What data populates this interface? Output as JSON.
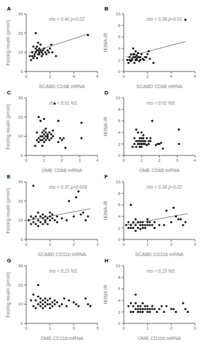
{
  "chart_data": [
    {
      "type": "scatter",
      "title": "A",
      "annotations": [
        {
          "text": "rho = 0.40 p=0.02",
          "color": "#808080"
        }
      ],
      "xlabel": "SCABD CD68 mRNA",
      "ylabel": "Fasting Insulin (pmol/l)",
      "xlim": [
        0,
        6
      ],
      "ylim": [
        0,
        30
      ],
      "xticks": [
        0,
        2,
        4,
        6
      ],
      "yticks": [
        0,
        10,
        20,
        30
      ],
      "grid": false,
      "series": [
        {
          "type": "scatter",
          "color": "#1a1a1a",
          "x": [
            0.3,
            0.4,
            0.5,
            0.5,
            0.6,
            0.6,
            0.7,
            0.7,
            0.8,
            0.8,
            0.8,
            0.9,
            0.9,
            0.9,
            1.0,
            1.0,
            1.0,
            1.1,
            1.1,
            1.1,
            1.2,
            1.2,
            1.3,
            1.3,
            1.4,
            1.4,
            1.5,
            1.6,
            1.7,
            1.8,
            1.9,
            2.0,
            2.1,
            2.2,
            2.5,
            5.2
          ],
          "values": [
            8,
            6,
            8,
            10,
            7,
            13,
            8,
            9,
            20,
            10,
            12,
            7,
            11,
            13,
            9,
            11,
            15,
            9,
            10,
            12,
            11,
            14,
            8,
            10,
            9,
            11,
            12,
            10,
            9,
            11,
            10,
            12,
            14,
            10,
            8,
            19
          ]
        },
        {
          "type": "line",
          "color": "#808080",
          "x": [
            0.2,
            5.2
          ],
          "values": [
            9.5,
            19.5
          ]
        }
      ]
    },
    {
      "type": "scatter",
      "title": "B",
      "annotations": [
        {
          "text": "rho = 0.39 p=0.01",
          "color": "#808080"
        }
      ],
      "xlabel": "SCABD CD68 mRNA",
      "ylabel": "HOMA-IR",
      "xlim": [
        0,
        6
      ],
      "ylim": [
        0,
        10
      ],
      "xticks": [
        0,
        2,
        4,
        6
      ],
      "yticks": [
        0,
        2,
        4,
        6,
        8,
        10
      ],
      "grid": false,
      "series": [
        {
          "type": "scatter",
          "color": "#1a1a1a",
          "x": [
            0.3,
            0.4,
            0.5,
            0.5,
            0.6,
            0.6,
            0.7,
            0.7,
            0.8,
            0.8,
            0.8,
            0.9,
            0.9,
            0.9,
            1.0,
            1.0,
            1.0,
            1.1,
            1.1,
            1.1,
            1.2,
            1.2,
            1.3,
            1.3,
            1.4,
            1.4,
            1.5,
            1.6,
            1.7,
            1.8,
            1.9,
            2.0,
            2.1,
            2.2,
            2.5,
            5.2
          ],
          "values": [
            2.0,
            1.5,
            2.0,
            2.5,
            1.8,
            3.0,
            2.0,
            2.2,
            4.0,
            2.5,
            3.0,
            1.5,
            2.5,
            3.0,
            2.0,
            2.5,
            3.5,
            2.0,
            2.2,
            2.8,
            2.5,
            3.2,
            1.8,
            2.5,
            2.0,
            2.5,
            3.0,
            2.2,
            2.0,
            2.5,
            2.5,
            3.0,
            3.5,
            2.2,
            1.5,
            9.0
          ]
        },
        {
          "type": "line",
          "color": "#808080",
          "x": [
            0.2,
            5.2
          ],
          "values": [
            2.5,
            5.2
          ]
        }
      ]
    },
    {
      "type": "scatter",
      "title": "C",
      "annotations": [
        {
          "text": "rho = 0.01 NS",
          "color": "#808080"
        }
      ],
      "xlabel": "OME CD68 mRNA",
      "ylabel": "Fasting Insulin (pmol/l)",
      "xlim": [
        0,
        4
      ],
      "ylim": [
        0,
        30
      ],
      "xticks": [
        0,
        1,
        2,
        3,
        4
      ],
      "yticks": [
        0,
        10,
        20,
        30
      ],
      "grid": false,
      "series": [
        {
          "type": "scatter",
          "color": "#1a1a1a",
          "x": [
            0.5,
            0.6,
            0.6,
            0.7,
            0.7,
            0.7,
            0.8,
            0.8,
            0.8,
            0.9,
            0.9,
            0.9,
            0.9,
            1.0,
            1.0,
            1.0,
            1.0,
            1.0,
            1.1,
            1.1,
            1.1,
            1.1,
            1.2,
            1.2,
            1.2,
            1.3,
            1.3,
            1.4,
            1.4,
            1.5,
            1.5,
            1.6,
            1.8,
            1.8,
            1.9,
            2.0,
            2.1,
            2.2,
            3.1,
            3.1
          ],
          "values": [
            5,
            8,
            12,
            7,
            9,
            20,
            8,
            10,
            18,
            5,
            8,
            10,
            12,
            7,
            9,
            11,
            13,
            19,
            8,
            10,
            12,
            14,
            9,
            11,
            10,
            8,
            12,
            9,
            11,
            10,
            13,
            27,
            7,
            18,
            9,
            8,
            9,
            4,
            17,
            9
          ]
        }
      ]
    },
    {
      "type": "scatter",
      "title": "D",
      "annotations": [
        {
          "text": "rho = 0.01 NS",
          "color": "#808080"
        }
      ],
      "xlabel": "OME CD68 mRNA",
      "ylabel": "HOMA-IR",
      "xlim": [
        0,
        4
      ],
      "ylim": [
        0,
        10
      ],
      "xticks": [
        0,
        1,
        2,
        3,
        4
      ],
      "yticks": [
        0,
        2,
        4,
        6,
        8,
        10
      ],
      "grid": false,
      "series": [
        {
          "type": "scatter",
          "color": "#1a1a1a",
          "x": [
            0.5,
            0.6,
            0.6,
            0.7,
            0.7,
            0.7,
            0.8,
            0.8,
            0.8,
            0.9,
            0.9,
            0.9,
            0.9,
            1.0,
            1.0,
            1.0,
            1.0,
            1.0,
            1.1,
            1.1,
            1.1,
            1.1,
            1.2,
            1.2,
            1.2,
            1.3,
            1.3,
            1.4,
            1.4,
            1.5,
            1.5,
            1.6,
            1.8,
            1.9,
            2.0,
            2.1,
            2.2,
            3.1,
            3.1
          ],
          "values": [
            1.5,
            2.0,
            3.0,
            1.5,
            2.5,
            4.5,
            2.0,
            2.5,
            4.0,
            1.5,
            2.0,
            2.5,
            3.0,
            1.5,
            2.0,
            2.5,
            3.0,
            4.0,
            2.0,
            2.5,
            3.0,
            3.5,
            2.0,
            2.5,
            2.5,
            1.8,
            3.0,
            2.0,
            2.5,
            2.5,
            3.0,
            6.0,
            1.8,
            2.0,
            2.0,
            2.2,
            1.2,
            4.5,
            2.0
          ]
        }
      ]
    },
    {
      "type": "scatter",
      "title": "E",
      "annotations": [
        {
          "text": "rho = 0.37 p=0.009",
          "color": "#808080"
        }
      ],
      "xlabel": "SCABD CD11b mRNA",
      "ylabel": "Fasting Insulin (pmol/l)",
      "xlim": [
        0,
        3
      ],
      "ylim": [
        0,
        30
      ],
      "xticks": [
        0,
        1,
        2,
        3
      ],
      "yticks": [
        0,
        10,
        20,
        30
      ],
      "grid": false,
      "series": [
        {
          "type": "scatter",
          "color": "#1a1a1a",
          "x": [
            0.1,
            0.2,
            0.2,
            0.3,
            0.3,
            0.3,
            0.4,
            0.4,
            0.5,
            0.5,
            0.5,
            0.6,
            0.6,
            0.7,
            0.7,
            0.7,
            0.8,
            0.8,
            0.8,
            0.9,
            0.9,
            1.0,
            1.0,
            1.0,
            1.1,
            1.1,
            1.2,
            1.3,
            1.3,
            1.5,
            1.7,
            1.8,
            2.0,
            2.1,
            2.2,
            2.3,
            2.4,
            2.5,
            2.6
          ],
          "values": [
            10,
            8,
            12,
            9,
            11,
            28,
            8,
            12,
            7,
            10,
            14,
            9,
            12,
            8,
            11,
            13,
            9,
            10,
            12,
            8,
            11,
            10,
            12,
            14,
            11,
            13,
            10,
            12,
            9,
            11,
            10,
            20,
            12,
            22,
            25,
            13,
            14,
            10,
            12
          ]
        },
        {
          "type": "line",
          "color": "#808080",
          "x": [
            0.1,
            2.7
          ],
          "values": [
            10.0,
            16.0
          ]
        }
      ]
    },
    {
      "type": "scatter",
      "title": "F",
      "annotations": [
        {
          "text": "rho = 0.34 p=0.02",
          "color": "#808080"
        }
      ],
      "xlabel": "SCABD CD11b mRNA",
      "ylabel": "HOMA-IR",
      "xlim": [
        0,
        3
      ],
      "ylim": [
        0,
        10
      ],
      "xticks": [
        0,
        1,
        2,
        3
      ],
      "yticks": [
        0,
        2,
        4,
        6,
        8,
        10
      ],
      "grid": false,
      "series": [
        {
          "type": "scatter",
          "color": "#1a1a1a",
          "x": [
            0.1,
            0.2,
            0.2,
            0.3,
            0.3,
            0.3,
            0.4,
            0.4,
            0.5,
            0.5,
            0.5,
            0.6,
            0.6,
            0.7,
            0.7,
            0.7,
            0.8,
            0.8,
            0.8,
            0.9,
            0.9,
            1.0,
            1.0,
            1.0,
            1.1,
            1.1,
            1.2,
            1.3,
            1.3,
            1.5,
            1.7,
            1.8,
            2.0,
            2.1,
            2.2,
            2.3,
            2.4,
            2.5,
            2.6
          ],
          "values": [
            2.5,
            2.0,
            3.0,
            2.0,
            2.5,
            6.0,
            2.0,
            3.0,
            1.5,
            2.5,
            3.5,
            2.0,
            3.0,
            1.8,
            2.5,
            3.0,
            2.0,
            2.5,
            3.0,
            2.0,
            2.5,
            2.5,
            3.0,
            3.5,
            2.5,
            3.0,
            2.5,
            3.0,
            2.0,
            2.5,
            2.5,
            5.0,
            3.0,
            5.5,
            4.0,
            3.5,
            3.5,
            2.5,
            3.0
          ]
        },
        {
          "type": "line",
          "color": "#808080",
          "x": [
            0.1,
            2.7
          ],
          "values": [
            2.5,
            4.5
          ]
        }
      ]
    },
    {
      "type": "scatter",
      "title": "G",
      "annotations": [
        {
          "text": "rho = 0.21 NS",
          "color": "#808080"
        }
      ],
      "xlabel": "OME CD11b mRNA",
      "ylabel": "Fasting Insulin (pmol/l)",
      "xlim": [
        0,
        3
      ],
      "ylim": [
        0,
        30
      ],
      "xticks": [
        0,
        1,
        2,
        3
      ],
      "yticks": [
        0,
        10,
        20,
        30
      ],
      "grid": false,
      "series": [
        {
          "type": "scatter",
          "color": "#1a1a1a",
          "x": [
            0.2,
            0.3,
            0.3,
            0.4,
            0.4,
            0.5,
            0.5,
            0.5,
            0.6,
            0.6,
            0.6,
            0.7,
            0.7,
            0.7,
            0.8,
            0.8,
            0.8,
            0.9,
            0.9,
            1.0,
            1.0,
            1.0,
            1.1,
            1.1,
            1.2,
            1.2,
            1.3,
            1.4,
            1.5,
            1.6,
            1.7,
            1.8,
            2.0,
            2.1,
            2.2,
            2.5,
            2.6,
            2.7
          ],
          "values": [
            12,
            9,
            15,
            8,
            12,
            10,
            14,
            20,
            9,
            11,
            13,
            8,
            10,
            12,
            9,
            11,
            13,
            10,
            12,
            8,
            10,
            13,
            9,
            11,
            10,
            12,
            11,
            9,
            10,
            13,
            9,
            12,
            11,
            10,
            9,
            13,
            10,
            9
          ]
        }
      ]
    },
    {
      "type": "scatter",
      "title": "H",
      "annotations": [
        {
          "text": "rho = 0.23 NS",
          "color": "#808080"
        }
      ],
      "xlabel": "OME CD11b mRNA",
      "ylabel": "HOMA-IR",
      "xlim": [
        0,
        3
      ],
      "ylim": [
        0,
        10
      ],
      "xticks": [
        0,
        1,
        2,
        3
      ],
      "yticks": [
        0,
        2,
        4,
        6,
        8,
        10
      ],
      "grid": false,
      "series": [
        {
          "type": "scatter",
          "color": "#1a1a1a",
          "x": [
            0.2,
            0.3,
            0.3,
            0.4,
            0.4,
            0.5,
            0.5,
            0.5,
            0.6,
            0.6,
            0.6,
            0.7,
            0.7,
            0.7,
            0.8,
            0.8,
            0.8,
            0.9,
            0.9,
            1.0,
            1.0,
            1.0,
            1.1,
            1.1,
            1.2,
            1.2,
            1.3,
            1.4,
            1.5,
            1.6,
            1.7,
            1.8,
            2.0,
            2.1,
            2.2,
            2.5,
            2.6,
            2.7
          ],
          "values": [
            3.0,
            2.0,
            3.5,
            2.0,
            3.0,
            2.5,
            3.5,
            5.0,
            2.0,
            2.5,
            3.0,
            2.0,
            2.5,
            3.0,
            2.0,
            2.5,
            3.5,
            2.5,
            3.0,
            2.0,
            2.5,
            3.0,
            2.0,
            2.5,
            2.5,
            3.0,
            2.5,
            2.0,
            2.5,
            3.0,
            2.0,
            3.0,
            2.5,
            2.5,
            2.0,
            3.5,
            2.5,
            2.0
          ]
        }
      ]
    }
  ]
}
